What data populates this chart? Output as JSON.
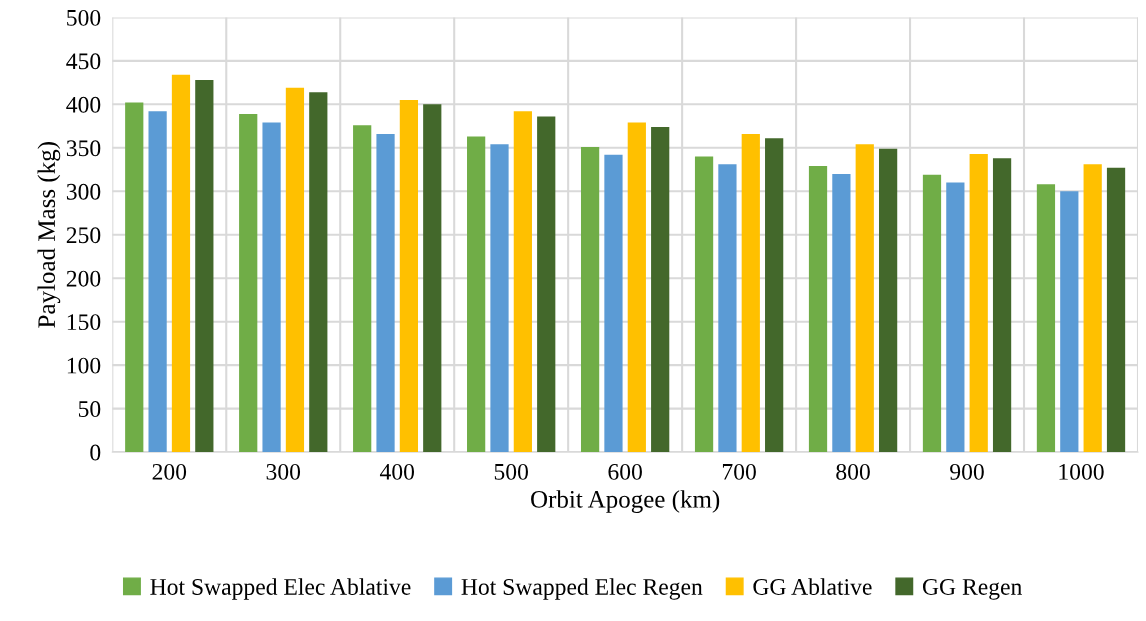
{
  "chart_data": {
    "type": "bar",
    "xlabel": "Orbit Apogee (km)",
    "ylabel": "Payload Mass (kg)",
    "categories": [
      "200",
      "300",
      "400",
      "500",
      "600",
      "700",
      "800",
      "900",
      "1000"
    ],
    "series": [
      {
        "name": "Hot Swapped Elec Ablative",
        "color": "#70ad47",
        "values": [
          402,
          389,
          376,
          363,
          351,
          340,
          329,
          319,
          308
        ]
      },
      {
        "name": "Hot Swapped Elec Regen",
        "color": "#5b9bd5",
        "values": [
          392,
          379,
          366,
          354,
          342,
          331,
          320,
          310,
          300
        ]
      },
      {
        "name": "GG Ablative",
        "color": "#ffc000",
        "values": [
          434,
          419,
          405,
          392,
          379,
          366,
          354,
          343,
          331
        ]
      },
      {
        "name": "GG Regen",
        "color": "#43682b",
        "values": [
          428,
          414,
          400,
          386,
          374,
          361,
          349,
          338,
          327
        ]
      }
    ],
    "ylim": [
      0,
      500
    ],
    "yticks": [
      0,
      50,
      100,
      150,
      200,
      250,
      300,
      350,
      400,
      450,
      500
    ],
    "grid": true,
    "legend": "bottom"
  }
}
